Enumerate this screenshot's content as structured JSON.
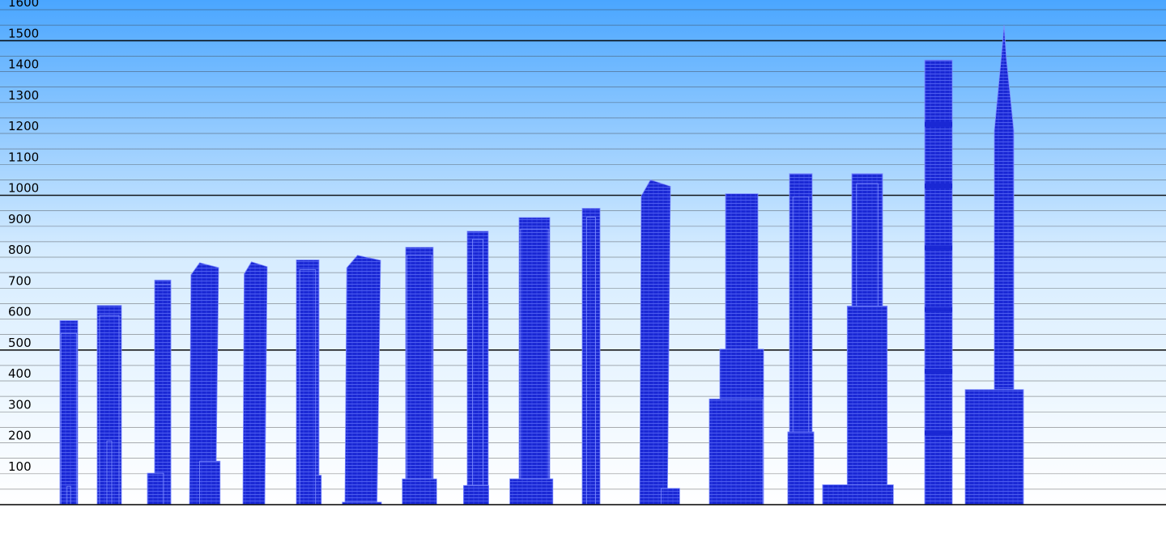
{
  "chart_data": {
    "type": "bar",
    "title": "",
    "xlabel": "",
    "ylabel": "",
    "ylim": [
      0,
      1600
    ],
    "grid": true,
    "grid_minor_step": 50,
    "grid_major_step": 500,
    "y_ticks": [
      100,
      200,
      300,
      400,
      500,
      600,
      700,
      800,
      900,
      1000,
      1100,
      1200,
      1300,
      1400,
      1500,
      1600
    ],
    "y_tick_labels": [
      "100",
      "200",
      "300",
      "400",
      "500",
      "600",
      "700",
      "800",
      "900",
      "1000",
      "1100",
      "1200",
      "1300",
      "1400",
      "1500",
      "1600"
    ],
    "categories": [
      "",
      "",
      "",
      "",
      "",
      "",
      "",
      "",
      "",
      "",
      "",
      "",
      "",
      "",
      "",
      "",
      ""
    ],
    "values": [
      595,
      644,
      726,
      782,
      785,
      791,
      806,
      832,
      884,
      928,
      958,
      1050,
      1005,
      1070,
      1070,
      1437,
      1550
    ],
    "colors": {
      "building": "#1a28d4",
      "building_line": "#7d8cff",
      "sky_top": "#4aa6ff",
      "sky_bottom": "#ffffff",
      "grid_minor": "#3c3c3c",
      "grid_major": "#000000",
      "tick_text": "#000000"
    }
  }
}
